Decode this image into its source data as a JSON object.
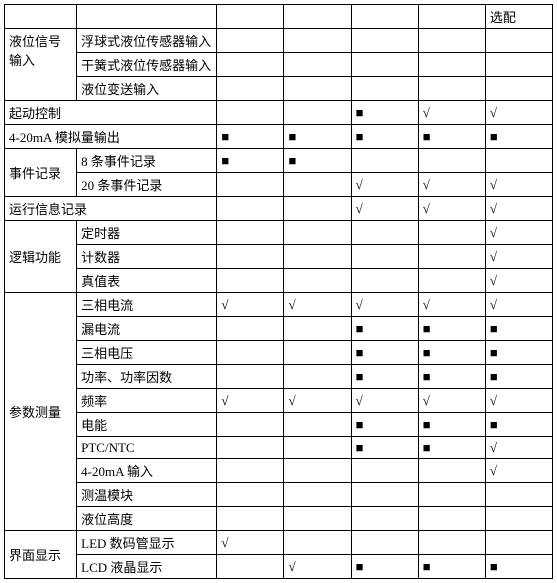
{
  "symbols": {
    "square": "■",
    "check": "√"
  },
  "header": {
    "选配": "选配"
  },
  "groups": {
    "液位信号输入": {
      "label": "液位信号\n输入",
      "rows": [
        {
          "name": "浮球式液位传感器输入",
          "marks": [
            "",
            "",
            "",
            "",
            ""
          ]
        },
        {
          "name": "干簧式液位传感器输入",
          "marks": [
            "",
            "",
            "",
            "",
            ""
          ]
        },
        {
          "name": "液位变送输入",
          "marks": [
            "",
            "",
            "",
            "",
            ""
          ]
        }
      ]
    },
    "起动控制": {
      "label": "起动控制",
      "marks": [
        "",
        "",
        "■",
        "√",
        "√"
      ]
    },
    "4-20mA模拟量输出": {
      "label": "4-20mA 模拟量输出",
      "marks": [
        "■",
        "■",
        "■",
        "■",
        "■"
      ]
    },
    "事件记录": {
      "label": "事件记录",
      "rows": [
        {
          "name": "8 条事件记录",
          "marks": [
            "■",
            "■",
            "",
            "",
            ""
          ]
        },
        {
          "name": "20 条事件记录",
          "marks": [
            "",
            "",
            "√",
            "√",
            "√"
          ]
        }
      ]
    },
    "运行信息记录": {
      "label": "运行信息记录",
      "marks": [
        "",
        "",
        "√",
        "√",
        "√"
      ]
    },
    "逻辑功能": {
      "label": "逻辑功能",
      "rows": [
        {
          "name": "定时器",
          "marks": [
            "",
            "",
            "",
            "",
            "√"
          ]
        },
        {
          "name": "计数器",
          "marks": [
            "",
            "",
            "",
            "",
            "√"
          ]
        },
        {
          "name": "真值表",
          "marks": [
            "",
            "",
            "",
            "",
            "√"
          ]
        }
      ]
    },
    "参数测量": {
      "label": "参数测量",
      "rows": [
        {
          "name": "三相电流",
          "marks": [
            "√",
            "√",
            "√",
            "√",
            "√"
          ]
        },
        {
          "name": "漏电流",
          "marks": [
            "",
            "",
            "■",
            "■",
            "■"
          ]
        },
        {
          "name": "三相电压",
          "marks": [
            "",
            "",
            "■",
            "■",
            "■"
          ]
        },
        {
          "name": "功率、功率因数",
          "marks": [
            "",
            "",
            "■",
            "■",
            "■"
          ]
        },
        {
          "name": "频率",
          "marks": [
            "√",
            "√",
            "√",
            "√",
            "√"
          ]
        },
        {
          "name": "电能",
          "marks": [
            "",
            "",
            "■",
            "■",
            "■"
          ]
        },
        {
          "name": "PTC/NTC",
          "marks": [
            "",
            "",
            "■",
            "■",
            "√"
          ]
        },
        {
          "name": "4-20mA 输入",
          "marks": [
            "",
            "",
            "",
            "",
            "√"
          ]
        },
        {
          "name": "测温模块",
          "marks": [
            "",
            "",
            "",
            "",
            ""
          ]
        },
        {
          "name": "液位高度",
          "marks": [
            "",
            "",
            "",
            "",
            ""
          ]
        }
      ]
    },
    "界面显示": {
      "label": "界面显示",
      "rows": [
        {
          "name": "LED 数码管显示",
          "marks": [
            "√",
            "",
            "",
            "",
            ""
          ]
        },
        {
          "name": "LCD 液晶显示",
          "marks": [
            "",
            "√",
            "■",
            "■",
            "■"
          ]
        }
      ]
    }
  }
}
